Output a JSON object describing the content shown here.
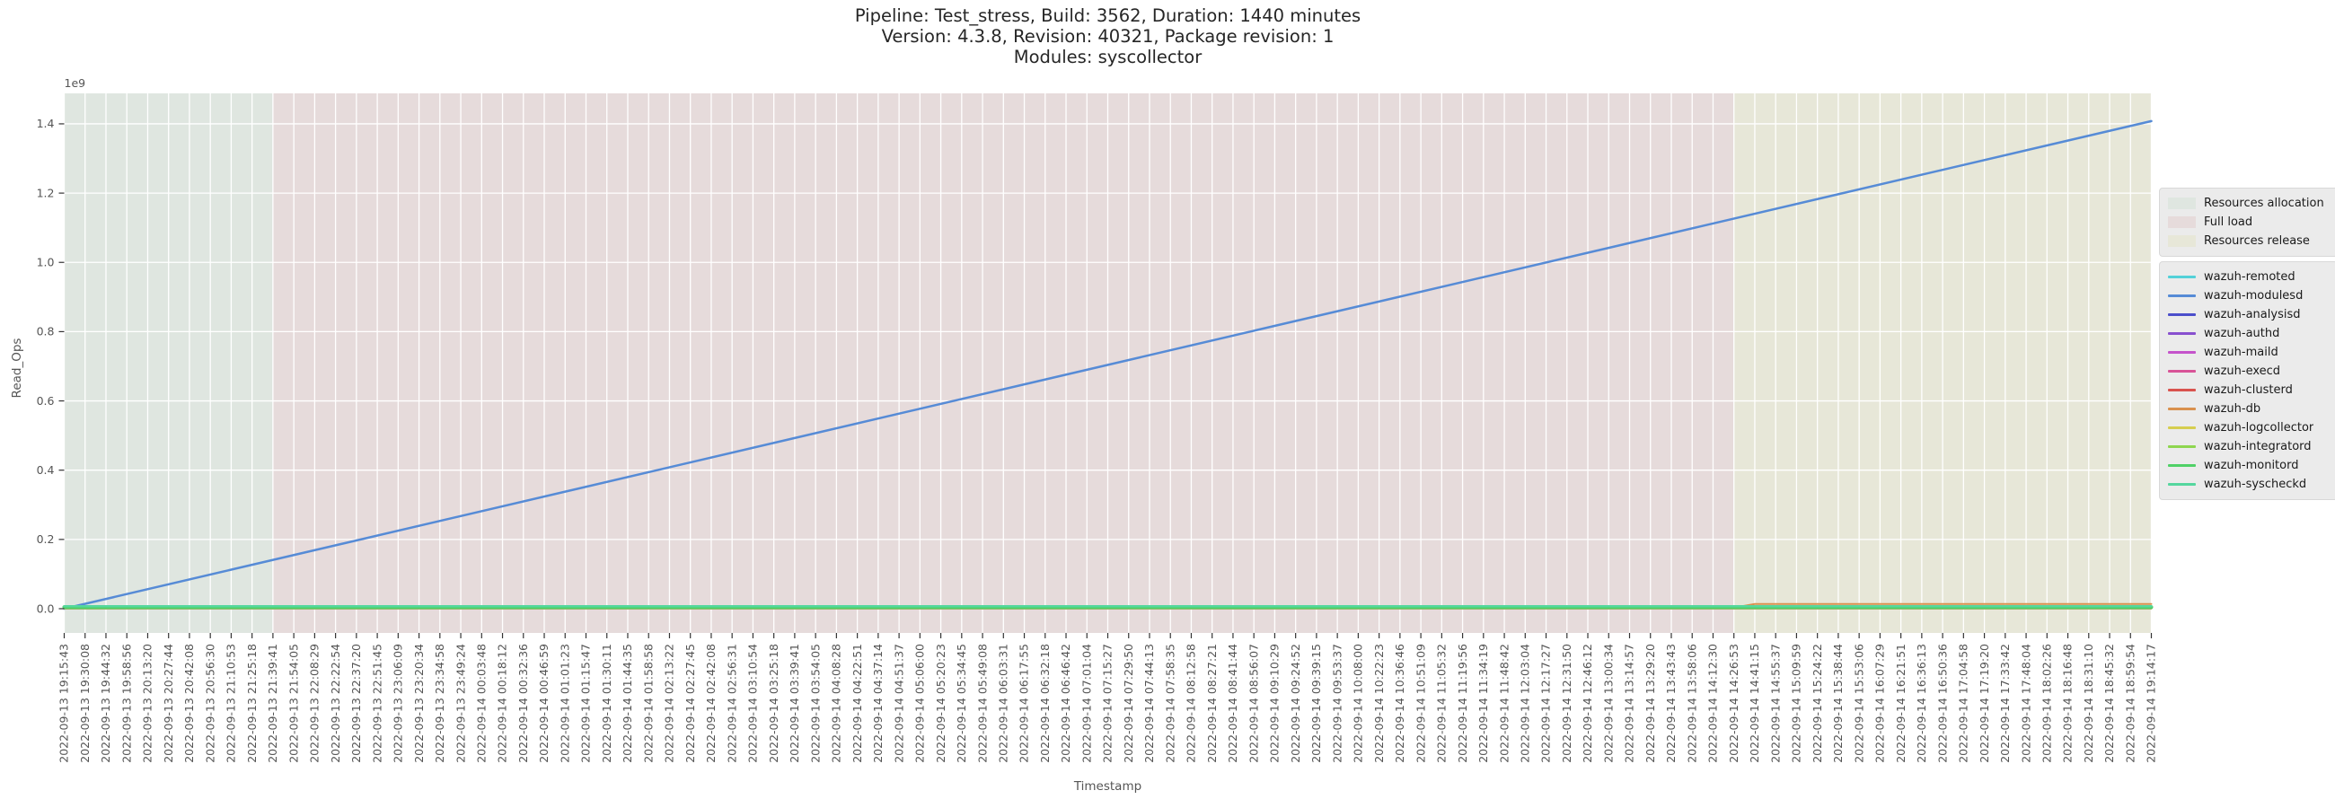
{
  "chart_data": {
    "type": "line",
    "title_lines": [
      "Pipeline: Test_stress, Build: 3562, Duration: 1440 minutes",
      "Version: 4.3.8, Revision: 40321, Package revision: 1",
      "Modules: syscollector"
    ],
    "xlabel": "Timestamp",
    "ylabel": "Read_Ops",
    "y_offset_label": "1e9",
    "grid": true,
    "legend_position": "right",
    "ylim": [
      -70000000,
      1488000000
    ],
    "yticks": [
      {
        "label": "0.0",
        "value": 0
      },
      {
        "label": "0.2",
        "value": 200000000
      },
      {
        "label": "0.4",
        "value": 400000000
      },
      {
        "label": "0.6",
        "value": 600000000
      },
      {
        "label": "0.8",
        "value": 800000000
      },
      {
        "label": "1.0",
        "value": 1000000000
      },
      {
        "label": "1.2",
        "value": 1200000000
      },
      {
        "label": "1.4",
        "value": 1400000000
      }
    ],
    "x_tick_labels": [
      "2022-09-13 19:15:43",
      "2022-09-13 19:30:08",
      "2022-09-13 19:44:32",
      "2022-09-13 19:58:56",
      "2022-09-13 20:13:20",
      "2022-09-13 20:27:44",
      "2022-09-13 20:42:08",
      "2022-09-13 20:56:30",
      "2022-09-13 21:10:53",
      "2022-09-13 21:25:18",
      "2022-09-13 21:39:41",
      "2022-09-13 21:54:05",
      "2022-09-13 22:08:29",
      "2022-09-13 22:22:54",
      "2022-09-13 22:37:20",
      "2022-09-13 22:51:45",
      "2022-09-13 23:06:09",
      "2022-09-13 23:20:34",
      "2022-09-13 23:34:58",
      "2022-09-13 23:49:24",
      "2022-09-14 00:03:48",
      "2022-09-14 00:18:12",
      "2022-09-14 00:32:36",
      "2022-09-14 00:46:59",
      "2022-09-14 01:01:23",
      "2022-09-14 01:15:47",
      "2022-09-14 01:30:11",
      "2022-09-14 01:44:35",
      "2022-09-14 01:58:58",
      "2022-09-14 02:13:22",
      "2022-09-14 02:27:45",
      "2022-09-14 02:42:08",
      "2022-09-14 02:56:31",
      "2022-09-14 03:10:54",
      "2022-09-14 03:25:18",
      "2022-09-14 03:39:41",
      "2022-09-14 03:54:05",
      "2022-09-14 04:08:28",
      "2022-09-14 04:22:51",
      "2022-09-14 04:37:14",
      "2022-09-14 04:51:37",
      "2022-09-14 05:06:00",
      "2022-09-14 05:20:23",
      "2022-09-14 05:34:45",
      "2022-09-14 05:49:08",
      "2022-09-14 06:03:31",
      "2022-09-14 06:17:55",
      "2022-09-14 06:32:18",
      "2022-09-14 06:46:42",
      "2022-09-14 07:01:04",
      "2022-09-14 07:15:27",
      "2022-09-14 07:29:50",
      "2022-09-14 07:44:13",
      "2022-09-14 07:58:35",
      "2022-09-14 08:12:58",
      "2022-09-14 08:27:21",
      "2022-09-14 08:41:44",
      "2022-09-14 08:56:07",
      "2022-09-14 09:10:29",
      "2022-09-14 09:24:52",
      "2022-09-14 09:39:15",
      "2022-09-14 09:53:37",
      "2022-09-14 10:08:00",
      "2022-09-14 10:22:23",
      "2022-09-14 10:36:46",
      "2022-09-14 10:51:09",
      "2022-09-14 11:05:32",
      "2022-09-14 11:19:56",
      "2022-09-14 11:34:19",
      "2022-09-14 11:48:42",
      "2022-09-14 12:03:04",
      "2022-09-14 12:17:27",
      "2022-09-14 12:31:50",
      "2022-09-14 12:46:12",
      "2022-09-14 13:00:34",
      "2022-09-14 13:14:57",
      "2022-09-14 13:29:20",
      "2022-09-14 13:43:43",
      "2022-09-14 13:58:06",
      "2022-09-14 14:12:30",
      "2022-09-14 14:26:53",
      "2022-09-14 14:41:15",
      "2022-09-14 14:55:37",
      "2022-09-14 15:09:59",
      "2022-09-14 15:24:22",
      "2022-09-14 15:38:44",
      "2022-09-14 15:53:06",
      "2022-09-14 16:07:29",
      "2022-09-14 16:21:51",
      "2022-09-14 16:36:13",
      "2022-09-14 16:50:36",
      "2022-09-14 17:04:58",
      "2022-09-14 17:19:20",
      "2022-09-14 17:33:42",
      "2022-09-14 17:48:04",
      "2022-09-14 18:02:26",
      "2022-09-14 18:16:48",
      "2022-09-14 18:31:10",
      "2022-09-14 18:45:32",
      "2022-09-14 18:59:54",
      "2022-09-14 19:14:17"
    ],
    "zones": [
      {
        "label": "Resources allocation",
        "color": "#dfe6e0",
        "start": "2022-09-13 19:15:43",
        "end": "2022-09-13 21:39:41",
        "start_index": 0,
        "end_index": 10
      },
      {
        "label": "Full load",
        "color": "#e6dbdb",
        "start": "2022-09-13 21:39:41",
        "end": "2022-09-14 14:26:53",
        "start_index": 10,
        "end_index": 80
      },
      {
        "label": "Resources release",
        "color": "#e7e7d8",
        "start": "2022-09-14 14:26:53",
        "end": "2022-09-14 19:14:17",
        "start_index": 80,
        "end_index": 100
      }
    ],
    "series": [
      {
        "name": "wazuh-remoted",
        "color": "#53d1d8",
        "width": 2,
        "points": [
          [
            0,
            1000000
          ],
          [
            100,
            1000000
          ]
        ]
      },
      {
        "name": "wazuh-modulesd",
        "color": "#568bd6",
        "width": 2.5,
        "points": [
          [
            0,
            0
          ],
          [
            100,
            1408000000
          ]
        ]
      },
      {
        "name": "wazuh-analysisd",
        "color": "#4b4ecb",
        "width": 2,
        "points": [
          [
            0,
            1000000
          ],
          [
            100,
            1000000
          ]
        ]
      },
      {
        "name": "wazuh-authd",
        "color": "#8850cf",
        "width": 2,
        "points": [
          [
            0,
            1000000
          ],
          [
            100,
            1000000
          ]
        ]
      },
      {
        "name": "wazuh-maild",
        "color": "#c553cb",
        "width": 2,
        "points": [
          [
            0,
            1000000
          ],
          [
            100,
            1000000
          ]
        ]
      },
      {
        "name": "wazuh-execd",
        "color": "#d85397",
        "width": 2,
        "points": [
          [
            0,
            1000000
          ],
          [
            100,
            1000000
          ]
        ]
      },
      {
        "name": "wazuh-clusterd",
        "color": "#d9534e",
        "width": 2,
        "points": [
          [
            0,
            1000000
          ],
          [
            100,
            1000000
          ]
        ]
      },
      {
        "name": "wazuh-db",
        "color": "#d9914e",
        "width": 2,
        "points": [
          [
            0,
            3000000
          ],
          [
            80,
            3000000
          ],
          [
            81,
            13500000
          ],
          [
            100,
            13500000
          ]
        ]
      },
      {
        "name": "wazuh-logcollector",
        "color": "#d6ce50",
        "width": 2,
        "points": [
          [
            0,
            1000000
          ],
          [
            100,
            1000000
          ]
        ]
      },
      {
        "name": "wazuh-integratord",
        "color": "#8ed650",
        "width": 2,
        "points": [
          [
            0,
            1000000
          ],
          [
            100,
            1000000
          ]
        ]
      },
      {
        "name": "wazuh-monitord",
        "color": "#50d167",
        "width": 4,
        "points": [
          [
            0,
            4500000
          ],
          [
            100,
            4500000
          ]
        ]
      },
      {
        "name": "wazuh-syscheckd",
        "color": "#55d79e",
        "width": 2.5,
        "points": [
          [
            0,
            7000000
          ],
          [
            100,
            7000000
          ]
        ]
      }
    ],
    "colors": {
      "grid": "#ffffff",
      "tick_text": "#555555",
      "axis_label_text": "#555555",
      "title_text": "#262626",
      "legend_bg": "#ebebeb",
      "legend_border": "#d8d8d8"
    }
  }
}
